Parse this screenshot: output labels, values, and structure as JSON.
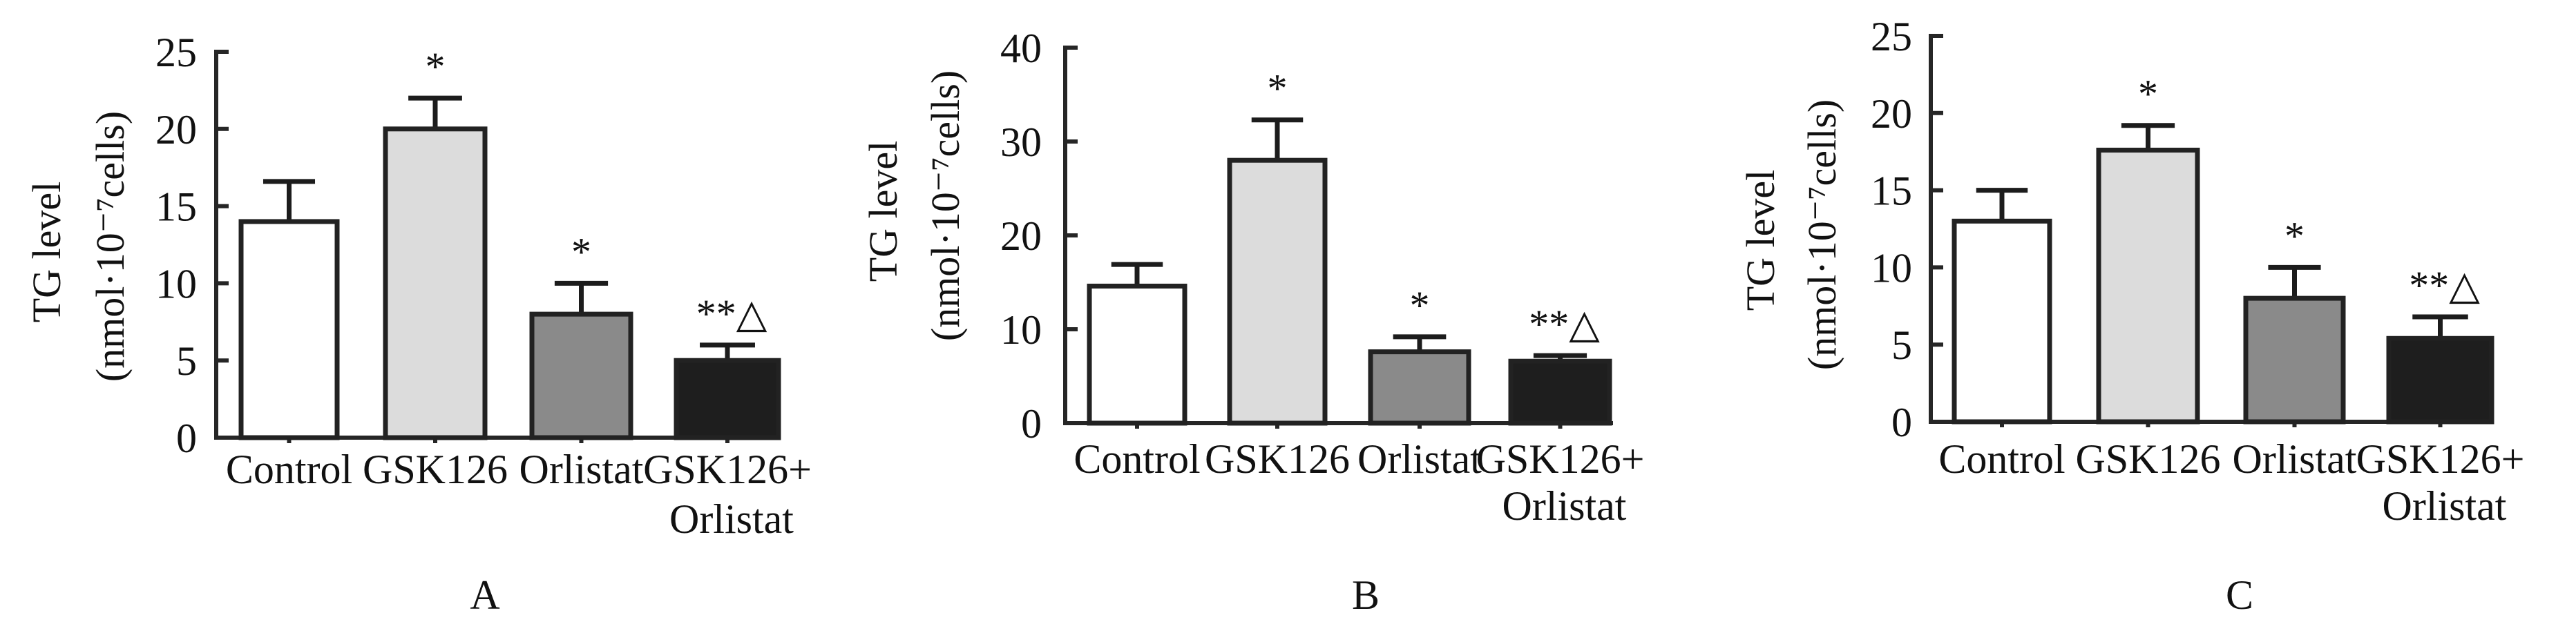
{
  "chart_data": [
    {
      "type": "bar",
      "panel": "A",
      "title": "",
      "xlabel": "",
      "ylabel": "TG level",
      "ylabel_unit": "(nmol·10⁻⁷cells)",
      "ylim": [
        0,
        25
      ],
      "yticks": [
        0,
        5,
        10,
        15,
        20,
        25
      ],
      "categories": [
        [
          "Control"
        ],
        [
          "GSK126"
        ],
        [
          "Orlistat"
        ],
        [
          "GSK126+",
          "Orlistat"
        ]
      ],
      "values": [
        14.0,
        20.0,
        8.0,
        5.0
      ],
      "error_upper": [
        16.6,
        22.0,
        10.0,
        6.0
      ],
      "annotations": [
        "",
        "*",
        "*",
        "**△"
      ],
      "grid": false,
      "legend": "none"
    },
    {
      "type": "bar",
      "panel": "B",
      "title": "",
      "xlabel": "",
      "ylabel": "TG level",
      "ylabel_unit": "(nmol·10⁻⁷cells)",
      "ylim": [
        0,
        40
      ],
      "yticks": [
        0,
        10,
        20,
        30,
        40
      ],
      "categories": [
        [
          "Control"
        ],
        [
          "GSK126"
        ],
        [
          "Orlistat"
        ],
        [
          "GSK126+",
          "Orlistat"
        ]
      ],
      "values": [
        14.6,
        28.0,
        7.6,
        6.6
      ],
      "error_upper": [
        16.9,
        32.3,
        9.2,
        7.2
      ],
      "annotations": [
        "",
        "*",
        "*",
        "**△"
      ],
      "grid": false,
      "legend": "none"
    },
    {
      "type": "bar",
      "panel": "C",
      "title": "",
      "xlabel": "",
      "ylabel": "TG level",
      "ylabel_unit": "(nmol·10⁻⁷cells)",
      "ylim": [
        0,
        25
      ],
      "yticks": [
        0,
        5,
        10,
        15,
        20,
        25
      ],
      "categories": [
        [
          "Control"
        ],
        [
          "GSK126"
        ],
        [
          "Orlistat"
        ],
        [
          "GSK126+",
          "Orlistat"
        ]
      ],
      "values": [
        13.0,
        17.6,
        8.0,
        5.4
      ],
      "error_upper": [
        15.0,
        19.2,
        10.0,
        6.8
      ],
      "annotations": [
        "",
        "*",
        "*",
        "**△"
      ],
      "grid": false,
      "legend": "none"
    }
  ],
  "colors": {
    "bar_fills": [
      "#ffffff",
      "#dcdcdc",
      "#8a8a8a",
      "#1e1e1e"
    ],
    "outline": "#222222",
    "text": "#111111"
  }
}
